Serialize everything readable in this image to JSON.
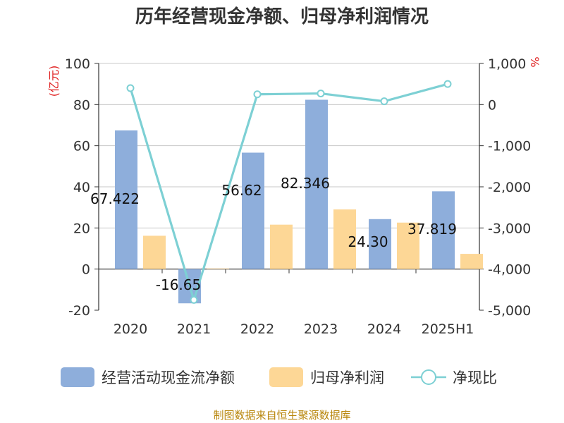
{
  "chart_data": {
    "type": "bar",
    "title": "历年经营现金净额、归母净利润情况",
    "categories": [
      "2020",
      "2021",
      "2022",
      "2023",
      "2024",
      "2025H1"
    ],
    "series": [
      {
        "name": "经营活动现金流净额",
        "type": "bar",
        "axis": "left",
        "color": "#8eaedb",
        "values": [
          67.422,
          -16.65,
          56.62,
          82.346,
          24.3,
          37.819
        ],
        "labels": [
          "67.422",
          "-16.65",
          "56.62",
          "82.346",
          "24.30",
          "37.819"
        ]
      },
      {
        "name": "归母净利润",
        "type": "bar",
        "axis": "left",
        "color": "#fdd796",
        "values": [
          16.2,
          0.3,
          21.6,
          29.0,
          22.6,
          7.4
        ]
      },
      {
        "name": "净现比",
        "type": "line",
        "axis": "right",
        "color": "#7dd0d4",
        "values": [
          400,
          -4750,
          250,
          270,
          80,
          500
        ]
      }
    ],
    "y_left": {
      "unit": "(亿元)",
      "min": -20,
      "max": 100,
      "ticks": [
        -20,
        0,
        20,
        40,
        60,
        80,
        100
      ]
    },
    "y_right": {
      "unit": "%",
      "min": -5000,
      "max": 1000,
      "ticks": [
        -5000,
        -4000,
        -3000,
        -2000,
        -1000,
        0,
        1000
      ],
      "tick_labels": [
        "-5,000",
        "-4,000",
        "-3,000",
        "-2,000",
        "-1,000",
        "0",
        "1,000"
      ]
    },
    "grid": true,
    "legend_position": "bottom",
    "source": "制图数据来自恒生聚源数据库"
  }
}
